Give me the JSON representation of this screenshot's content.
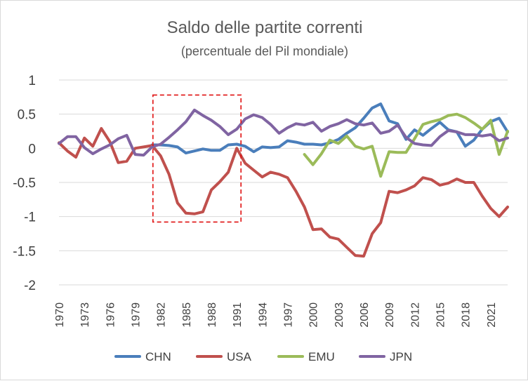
{
  "chart_data": {
    "type": "line",
    "title": "Saldo delle partite correnti",
    "subtitle": "(percentuale del Pil mondiale)",
    "xlabel": "",
    "ylabel": "",
    "ylim": [
      -2,
      1
    ],
    "yticks": [
      "1",
      "0.5",
      "0",
      "-0.5",
      "-1",
      "-1.5",
      "-2"
    ],
    "ytick_values": [
      1,
      0.5,
      0,
      -0.5,
      -1,
      -1.5,
      -2
    ],
    "xlim": [
      1970,
      2023
    ],
    "xtick_labels": [
      "1970",
      "1973",
      "1976",
      "1979",
      "1982",
      "1985",
      "1988",
      "1991",
      "1994",
      "1997",
      "2000",
      "2003",
      "2006",
      "2009",
      "2012",
      "2015",
      "2018",
      "2021"
    ],
    "grid": true,
    "legend_position": "bottom",
    "highlight_box": {
      "x_from": 1981.1,
      "x_to": 1991.5,
      "y_from": -1.08,
      "y_to": 0.78
    },
    "series": [
      {
        "name": "CHN",
        "color": "#4a7ebb",
        "x": [
          1970,
          1971,
          1972,
          1973,
          1974,
          1975,
          1976,
          1977,
          1978,
          1979,
          1980,
          1981,
          1982,
          1983,
          1984,
          1985,
          1986,
          1987,
          1988,
          1989,
          1990,
          1991,
          1992,
          1993,
          1994,
          1995,
          1996,
          1997,
          1998,
          1999,
          2000,
          2001,
          2002,
          2003,
          2004,
          2005,
          2006,
          2007,
          2008,
          2009,
          2010,
          2011,
          2012,
          2013,
          2014,
          2015,
          2016,
          2017,
          2018,
          2019,
          2020,
          2021,
          2022,
          2023
        ],
        "values": [
          null,
          null,
          null,
          null,
          null,
          null,
          null,
          null,
          null,
          null,
          null,
          0.05,
          0.05,
          0.04,
          0.02,
          -0.07,
          -0.04,
          -0.01,
          -0.03,
          -0.03,
          0.05,
          0.06,
          0.03,
          -0.05,
          0.02,
          0.01,
          0.02,
          0.11,
          0.09,
          0.06,
          0.06,
          0.05,
          0.08,
          0.13,
          0.22,
          0.3,
          0.44,
          0.59,
          0.65,
          0.4,
          0.36,
          0.13,
          0.27,
          0.19,
          0.29,
          0.38,
          0.27,
          0.24,
          0.03,
          0.12,
          0.28,
          0.39,
          0.44,
          0.24
        ]
      },
      {
        "name": "USA",
        "color": "#c0504d",
        "x": [
          1970,
          1971,
          1972,
          1973,
          1974,
          1975,
          1976,
          1977,
          1978,
          1979,
          1980,
          1981,
          1982,
          1983,
          1984,
          1985,
          1986,
          1987,
          1988,
          1989,
          1990,
          1991,
          1992,
          1993,
          1994,
          1995,
          1996,
          1997,
          1998,
          1999,
          2000,
          2001,
          2002,
          2003,
          2004,
          2005,
          2006,
          2007,
          2008,
          2009,
          2010,
          2011,
          2012,
          2013,
          2014,
          2015,
          2016,
          2017,
          2018,
          2019,
          2020,
          2021,
          2022,
          2023
        ],
        "values": [
          0.08,
          -0.04,
          -0.13,
          0.15,
          0.03,
          0.29,
          0.1,
          -0.21,
          -0.19,
          0.0,
          0.02,
          0.04,
          -0.11,
          -0.38,
          -0.8,
          -0.95,
          -0.96,
          -0.93,
          -0.61,
          -0.49,
          -0.35,
          0.0,
          -0.22,
          -0.32,
          -0.42,
          -0.35,
          -0.38,
          -0.43,
          -0.63,
          -0.86,
          -1.19,
          -1.18,
          -1.3,
          -1.33,
          -1.45,
          -1.57,
          -1.58,
          -1.25,
          -1.09,
          -0.63,
          -0.65,
          -0.61,
          -0.55,
          -0.43,
          -0.46,
          -0.54,
          -0.51,
          -0.45,
          -0.5,
          -0.5,
          -0.7,
          -0.88,
          -1.0,
          -0.86
        ]
      },
      {
        "name": "EMU",
        "color": "#9bbb59",
        "x": [
          1970,
          1971,
          1972,
          1973,
          1974,
          1975,
          1976,
          1977,
          1978,
          1979,
          1980,
          1981,
          1982,
          1983,
          1984,
          1985,
          1986,
          1987,
          1988,
          1989,
          1990,
          1991,
          1992,
          1993,
          1994,
          1995,
          1996,
          1997,
          1998,
          1999,
          2000,
          2001,
          2002,
          2003,
          2004,
          2005,
          2006,
          2007,
          2008,
          2009,
          2010,
          2011,
          2012,
          2013,
          2014,
          2015,
          2016,
          2017,
          2018,
          2019,
          2020,
          2021,
          2022,
          2023
        ],
        "values": [
          null,
          null,
          null,
          null,
          null,
          null,
          null,
          null,
          null,
          null,
          null,
          null,
          null,
          null,
          null,
          null,
          null,
          null,
          null,
          null,
          null,
          null,
          null,
          null,
          null,
          null,
          null,
          null,
          null,
          -0.09,
          -0.24,
          -0.08,
          0.12,
          0.07,
          0.18,
          0.03,
          -0.01,
          0.03,
          -0.41,
          -0.05,
          -0.06,
          -0.06,
          0.14,
          0.35,
          0.39,
          0.42,
          0.48,
          0.5,
          0.45,
          0.37,
          0.28,
          0.41,
          -0.09,
          0.25
        ]
      },
      {
        "name": "JPN",
        "color": "#8064a2",
        "x": [
          1970,
          1971,
          1972,
          1973,
          1974,
          1975,
          1976,
          1977,
          1978,
          1979,
          1980,
          1981,
          1982,
          1983,
          1984,
          1985,
          1986,
          1987,
          1988,
          1989,
          1990,
          1991,
          1992,
          1993,
          1994,
          1995,
          1996,
          1997,
          1998,
          1999,
          2000,
          2001,
          2002,
          2003,
          2004,
          2005,
          2006,
          2007,
          2008,
          2009,
          2010,
          2011,
          2012,
          2013,
          2014,
          2015,
          2016,
          2017,
          2018,
          2019,
          2020,
          2021,
          2022,
          2023
        ],
        "values": [
          0.07,
          0.17,
          0.17,
          0.01,
          -0.08,
          -0.01,
          0.05,
          0.14,
          0.19,
          -0.09,
          -0.1,
          0.02,
          0.06,
          0.16,
          0.27,
          0.39,
          0.56,
          0.48,
          0.41,
          0.32,
          0.2,
          0.28,
          0.43,
          0.49,
          0.45,
          0.35,
          0.22,
          0.3,
          0.36,
          0.34,
          0.38,
          0.25,
          0.32,
          0.36,
          0.42,
          0.36,
          0.34,
          0.37,
          0.22,
          0.25,
          0.34,
          0.16,
          0.07,
          0.05,
          0.04,
          0.17,
          0.26,
          0.24,
          0.2,
          0.2,
          0.18,
          0.2,
          0.11,
          0.15
        ]
      }
    ]
  }
}
